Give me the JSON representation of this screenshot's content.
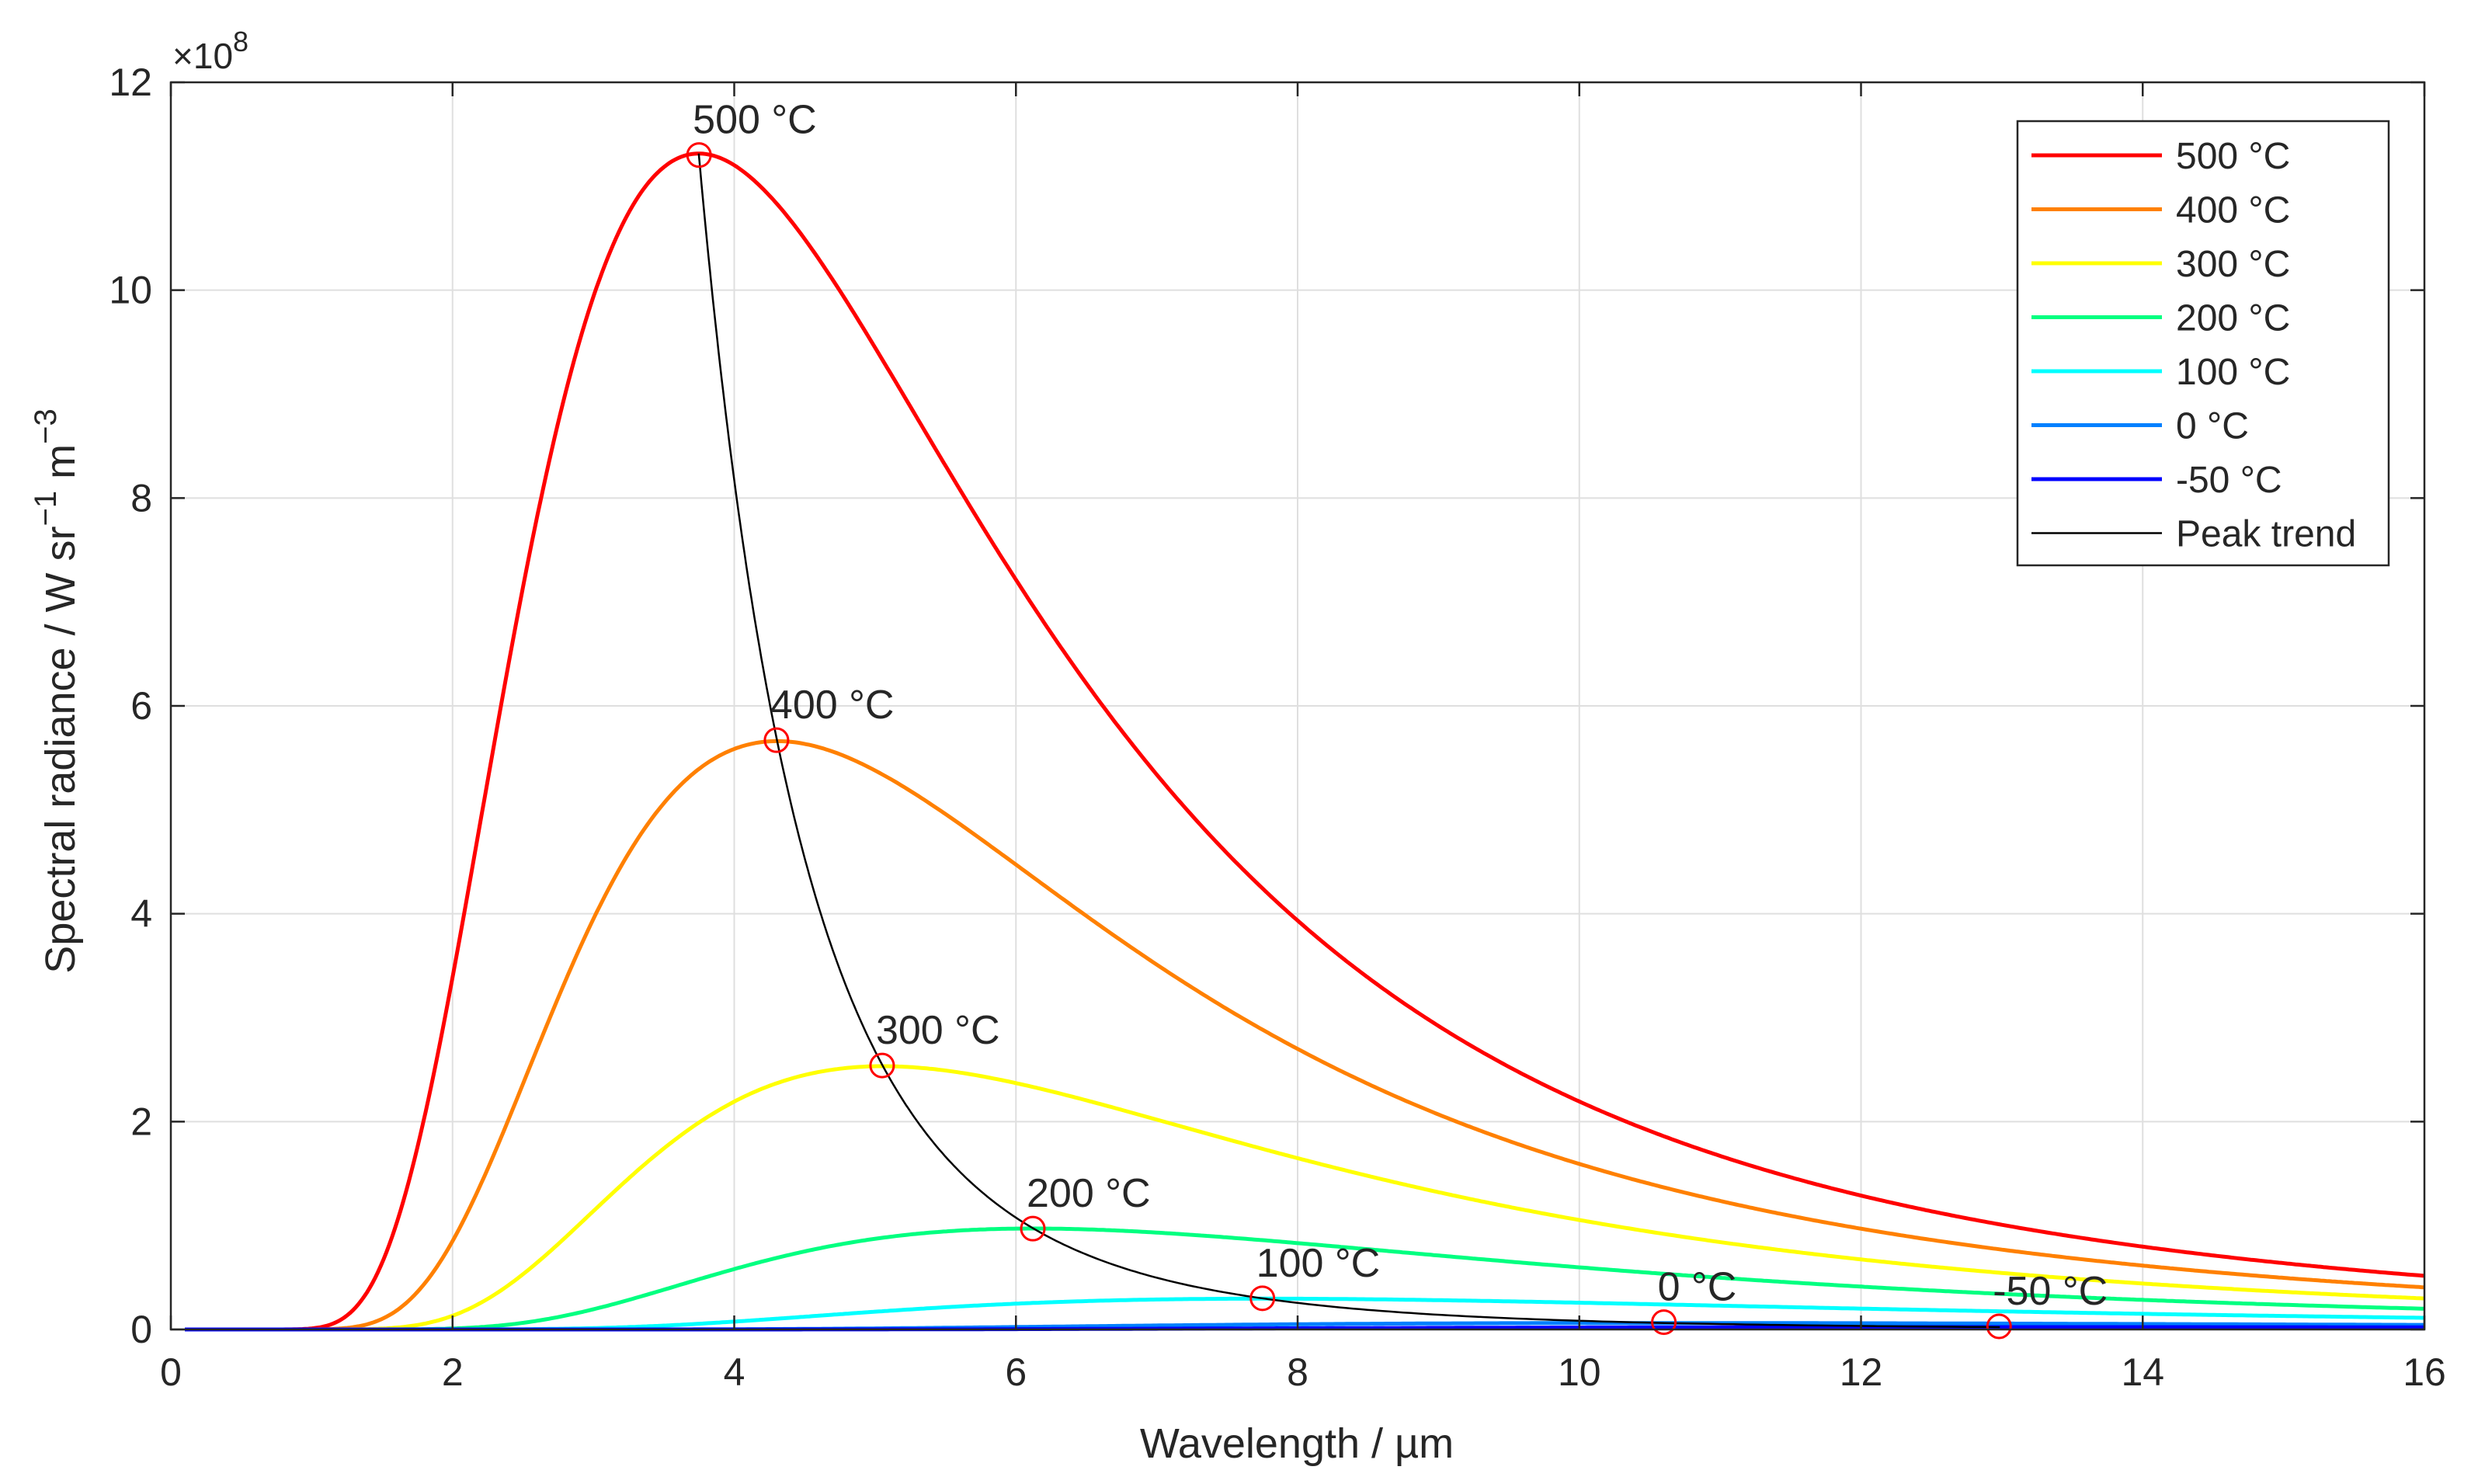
{
  "chart_data": {
    "type": "line",
    "xlabel": "Wavelength / µm",
    "ylabel": "Spectral radiance / W sr",
    "ylabel_sup1": "−1",
    "ylabel_mid": " m",
    "ylabel_sup2": "−3",
    "y_multiplier_base": "×10",
    "y_multiplier_exp": "8",
    "xlim": [
      0,
      16
    ],
    "ylim": [
      0,
      12
    ],
    "y_scale_factor": 100000000,
    "xticks": [
      0,
      2,
      4,
      6,
      8,
      10,
      12,
      14,
      16
    ],
    "yticks": [
      0,
      2,
      4,
      6,
      8,
      10,
      12
    ],
    "grid": true,
    "legend_position": "top-right",
    "series": [
      {
        "name": "500 °C",
        "temperature_c": 500,
        "color": "#ff0000"
      },
      {
        "name": "400 °C",
        "temperature_c": 400,
        "color": "#ff8000"
      },
      {
        "name": "300 °C",
        "temperature_c": 300,
        "color": "#ffff00"
      },
      {
        "name": "200 °C",
        "temperature_c": 200,
        "color": "#00ff80"
      },
      {
        "name": "100 °C",
        "temperature_c": 100,
        "color": "#00ffff"
      },
      {
        "name": "0 °C",
        "temperature_c": 0,
        "color": "#0080ff"
      },
      {
        "name": "-50 °C",
        "temperature_c": -50,
        "color": "#0000ff"
      },
      {
        "name": "Peak trend",
        "color": "#000000"
      }
    ],
    "peaks": [
      {
        "label": "500 °C",
        "x": 3.75,
        "y": 11.3
      },
      {
        "label": "400 °C",
        "x": 4.3,
        "y": 5.67
      },
      {
        "label": "300 °C",
        "x": 5.05,
        "y": 2.54
      },
      {
        "label": "200 °C",
        "x": 6.12,
        "y": 0.97
      },
      {
        "label": "100 °C",
        "x": 7.75,
        "y": 0.3
      },
      {
        "label": "0 °C",
        "x": 10.6,
        "y": 0.07
      },
      {
        "label": "-50 °C",
        "x": 12.98,
        "y": 0.03
      }
    ],
    "colors": {
      "peak_marker": "#ff0000",
      "grid": "#dfdfdf",
      "axis": "#262626"
    }
  }
}
